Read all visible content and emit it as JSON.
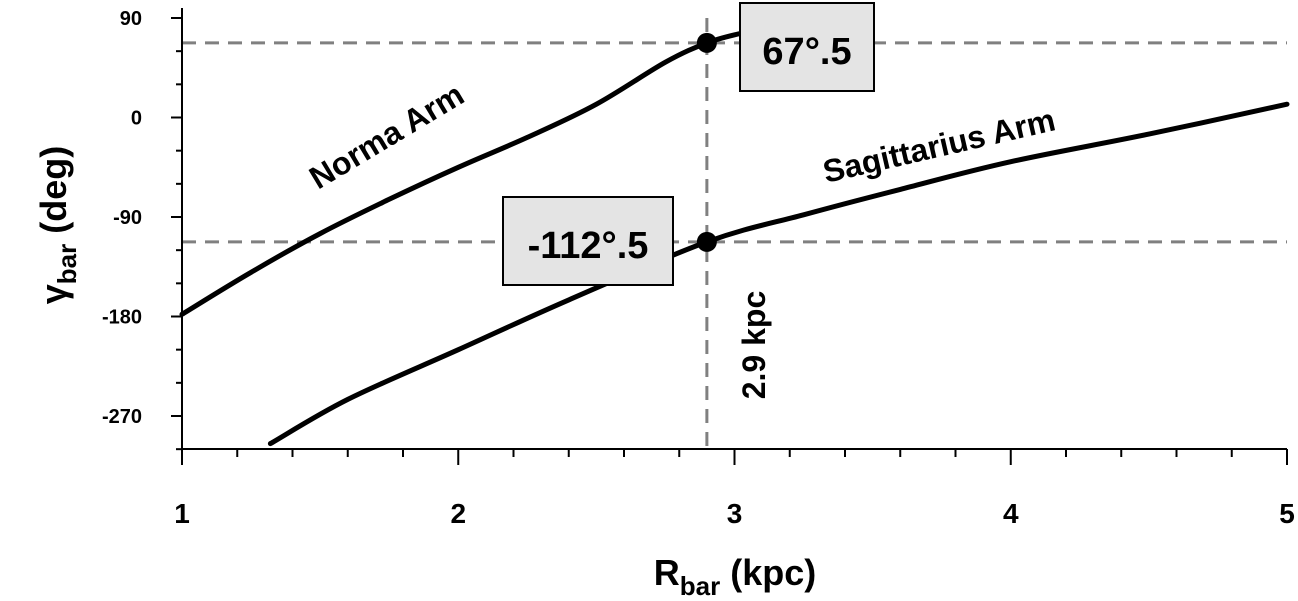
{
  "chart_data": {
    "type": "line",
    "xlabel": {
      "main": "R",
      "sub": "bar",
      "rest": " (kpc)"
    },
    "ylabel": {
      "main": "γ",
      "sub": "bar",
      "rest": " (deg)"
    },
    "xlim": [
      1,
      5
    ],
    "ylim": [
      -300,
      90
    ],
    "x_ticks": [
      1,
      2,
      3,
      4,
      5
    ],
    "x_tick_labels": [
      "1",
      "2",
      "3",
      "4",
      "5"
    ],
    "y_ticks": [
      90,
      0,
      -90,
      -180,
      -270
    ],
    "y_tick_labels": [
      "90",
      "0",
      "-90",
      "-180",
      "-270"
    ],
    "series": [
      {
        "name": "Norma Arm",
        "x": [
          1.0,
          1.25,
          1.5,
          1.75,
          2.0,
          2.25,
          2.5,
          2.75,
          2.9,
          3.02
        ],
        "y": [
          -178,
          -140,
          -105,
          -74,
          -45,
          -18,
          12,
          50,
          67.5,
          76
        ]
      },
      {
        "name": "Sagittarius Arm",
        "x": [
          1.32,
          1.6,
          2.0,
          2.4,
          2.9,
          3.25,
          3.6,
          4.0,
          4.5,
          5.0
        ],
        "y": [
          -295,
          -255,
          -210,
          -165,
          -112.5,
          -88,
          -65,
          -40,
          -15,
          12
        ]
      }
    ],
    "reference_lines": {
      "x": 2.9,
      "x_label": "2.9 kpc",
      "y": [
        67.5,
        -112.5
      ]
    },
    "markers": [
      {
        "x": 2.9,
        "y": 67.5,
        "label": "67°.5"
      },
      {
        "x": 2.9,
        "y": -112.5,
        "label": "-112°.5"
      }
    ],
    "curve_labels": [
      "Norma Arm",
      "Sagittarius Arm"
    ],
    "grid": false
  }
}
